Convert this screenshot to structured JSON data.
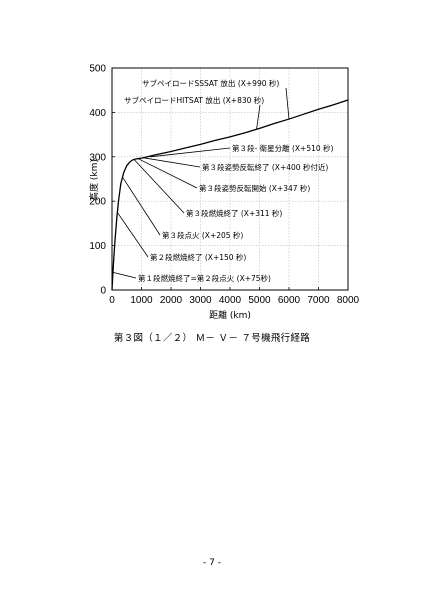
{
  "chart_data": {
    "type": "line",
    "title": "",
    "xlabel": "距離 (km)",
    "ylabel": "高度 (km)",
    "xlim": [
      0,
      8000
    ],
    "ylim": [
      0,
      500
    ],
    "x_ticks": [
      0,
      1000,
      2000,
      3000,
      4000,
      5000,
      6000,
      7000,
      8000
    ],
    "y_ticks": [
      0,
      100,
      200,
      300,
      400,
      500
    ],
    "grid": true,
    "series": [
      {
        "name": "",
        "x": [
          0,
          50,
          100,
          160,
          220,
          300,
          400,
          500,
          600,
          700,
          800,
          900,
          1000,
          1200,
          1500,
          2000,
          2500,
          3000,
          3500,
          4000,
          4500,
          5000,
          5500,
          6000,
          6500,
          7000,
          7500,
          8000
        ],
        "y": [
          0,
          60,
          110,
          160,
          200,
          240,
          265,
          280,
          288,
          293,
          295,
          296,
          297,
          300,
          305,
          312,
          320,
          328,
          337,
          345,
          354,
          364,
          375,
          385,
          396,
          407,
          417,
          428
        ]
      }
    ],
    "annotations": [
      {
        "text": "サブペイロードSSSAT 放出 (X+990 秒)",
        "x": 6000,
        "y": 385
      },
      {
        "text": "サブペイロードHITSAT 放出 (X+830 秒)",
        "x": 4900,
        "y": 362
      },
      {
        "text": "第３段- 衛星分離 (X+510 秒)",
        "x": 1300,
        "y": 300
      },
      {
        "text": "第３段姿勢反転終了 (X+400 秒付近)",
        "x": 1050,
        "y": 298
      },
      {
        "text": "第３段姿勢反転開始 (X+347 秒)",
        "x": 880,
        "y": 296
      },
      {
        "text": "第３段燃焼終了 (X+311 秒)",
        "x": 750,
        "y": 294
      },
      {
        "text": "第３段点火 (X+205 秒)",
        "x": 350,
        "y": 255
      },
      {
        "text": "第２段燃焼終了 (X+150 秒)",
        "x": 180,
        "y": 175
      },
      {
        "text": "第１段燃焼終了=第２段点火 (X+75秒)",
        "x": 20,
        "y": 40
      }
    ]
  },
  "caption": "第３図（１／２） Ｍ－ Ｖ－ ７号機飛行経路",
  "page_number": "- 7 -"
}
